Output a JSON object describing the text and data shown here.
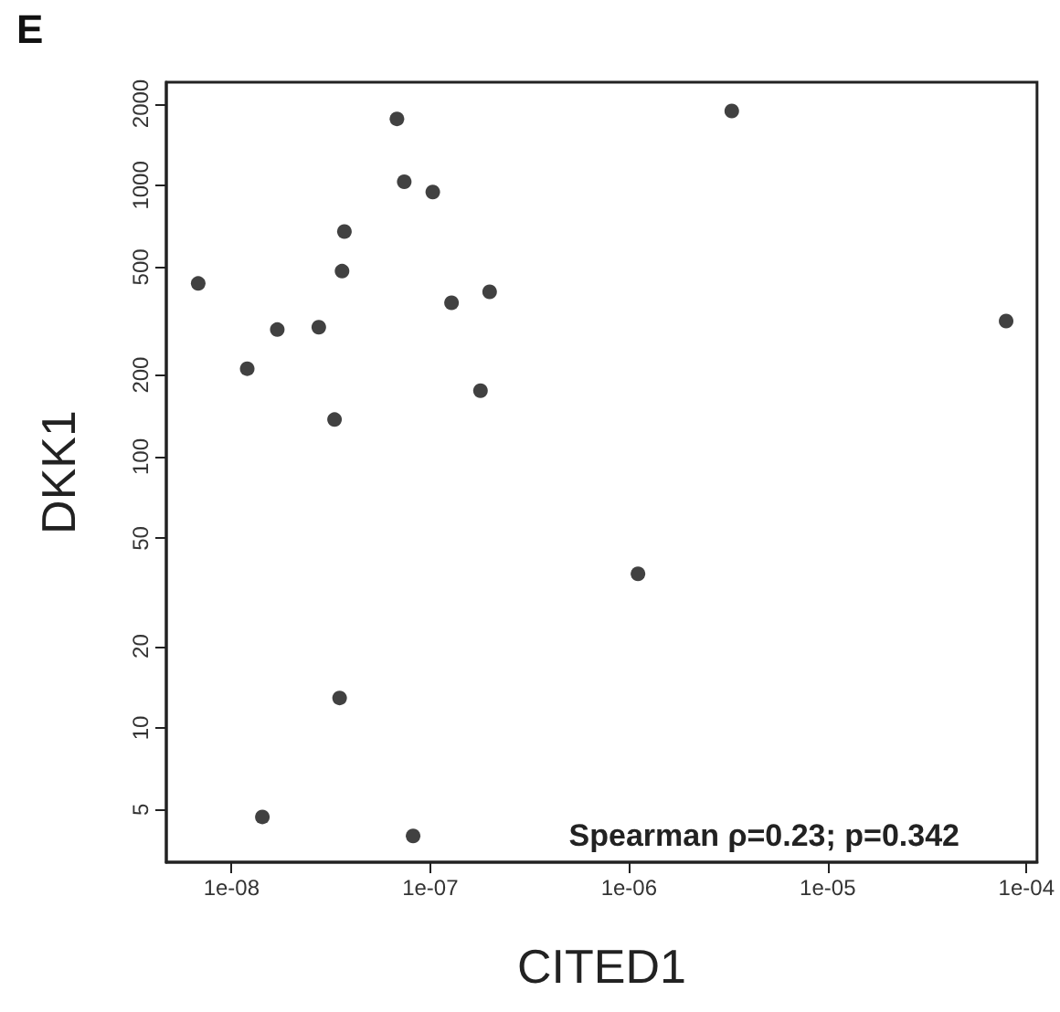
{
  "chart_data": {
    "type": "scatter",
    "title": "E",
    "xlabel": "CITED1",
    "ylabel": "DKK1",
    "log": "xy",
    "marker": "circle",
    "grid": false,
    "x": [
      6.8e-09,
      1.2e-08,
      1.7e-08,
      2.75e-08,
      3.3e-08,
      3.6e-08,
      3.7e-08,
      6.8e-08,
      7.4e-08,
      1.03e-07,
      1.28e-07,
      1.99e-07,
      1.79e-07,
      3.5e-08,
      1.43e-08,
      8.2e-08,
      1.11e-06,
      3.29e-06,
      7.9e-05
    ],
    "series": [
      {
        "color": "#111111",
        "values": [
          435,
          211,
          294,
          300,
          137,
          483,
          676,
          1758,
          1031,
          945,
          369,
          405,
          175,
          12.9,
          4.7,
          4.0,
          37,
          1880,
          316
        ]
      }
    ],
    "xlim": [
      4.7e-09,
      0.000113
    ],
    "ylim": [
      3.2,
      2400
    ],
    "xticks": [
      {
        "value": 1e-08,
        "label": "1e-08"
      },
      {
        "value": 1e-07,
        "label": "1e-07"
      },
      {
        "value": 1e-06,
        "label": "1e-06"
      },
      {
        "value": 1e-05,
        "label": "1e-05"
      },
      {
        "value": 0.0001,
        "label": "1e-04"
      }
    ],
    "yticks": [
      5,
      10,
      20,
      50,
      100,
      200,
      500,
      1000,
      2000
    ],
    "annotations": [
      "Spearman ρ=0.23; p=0.342"
    ]
  }
}
